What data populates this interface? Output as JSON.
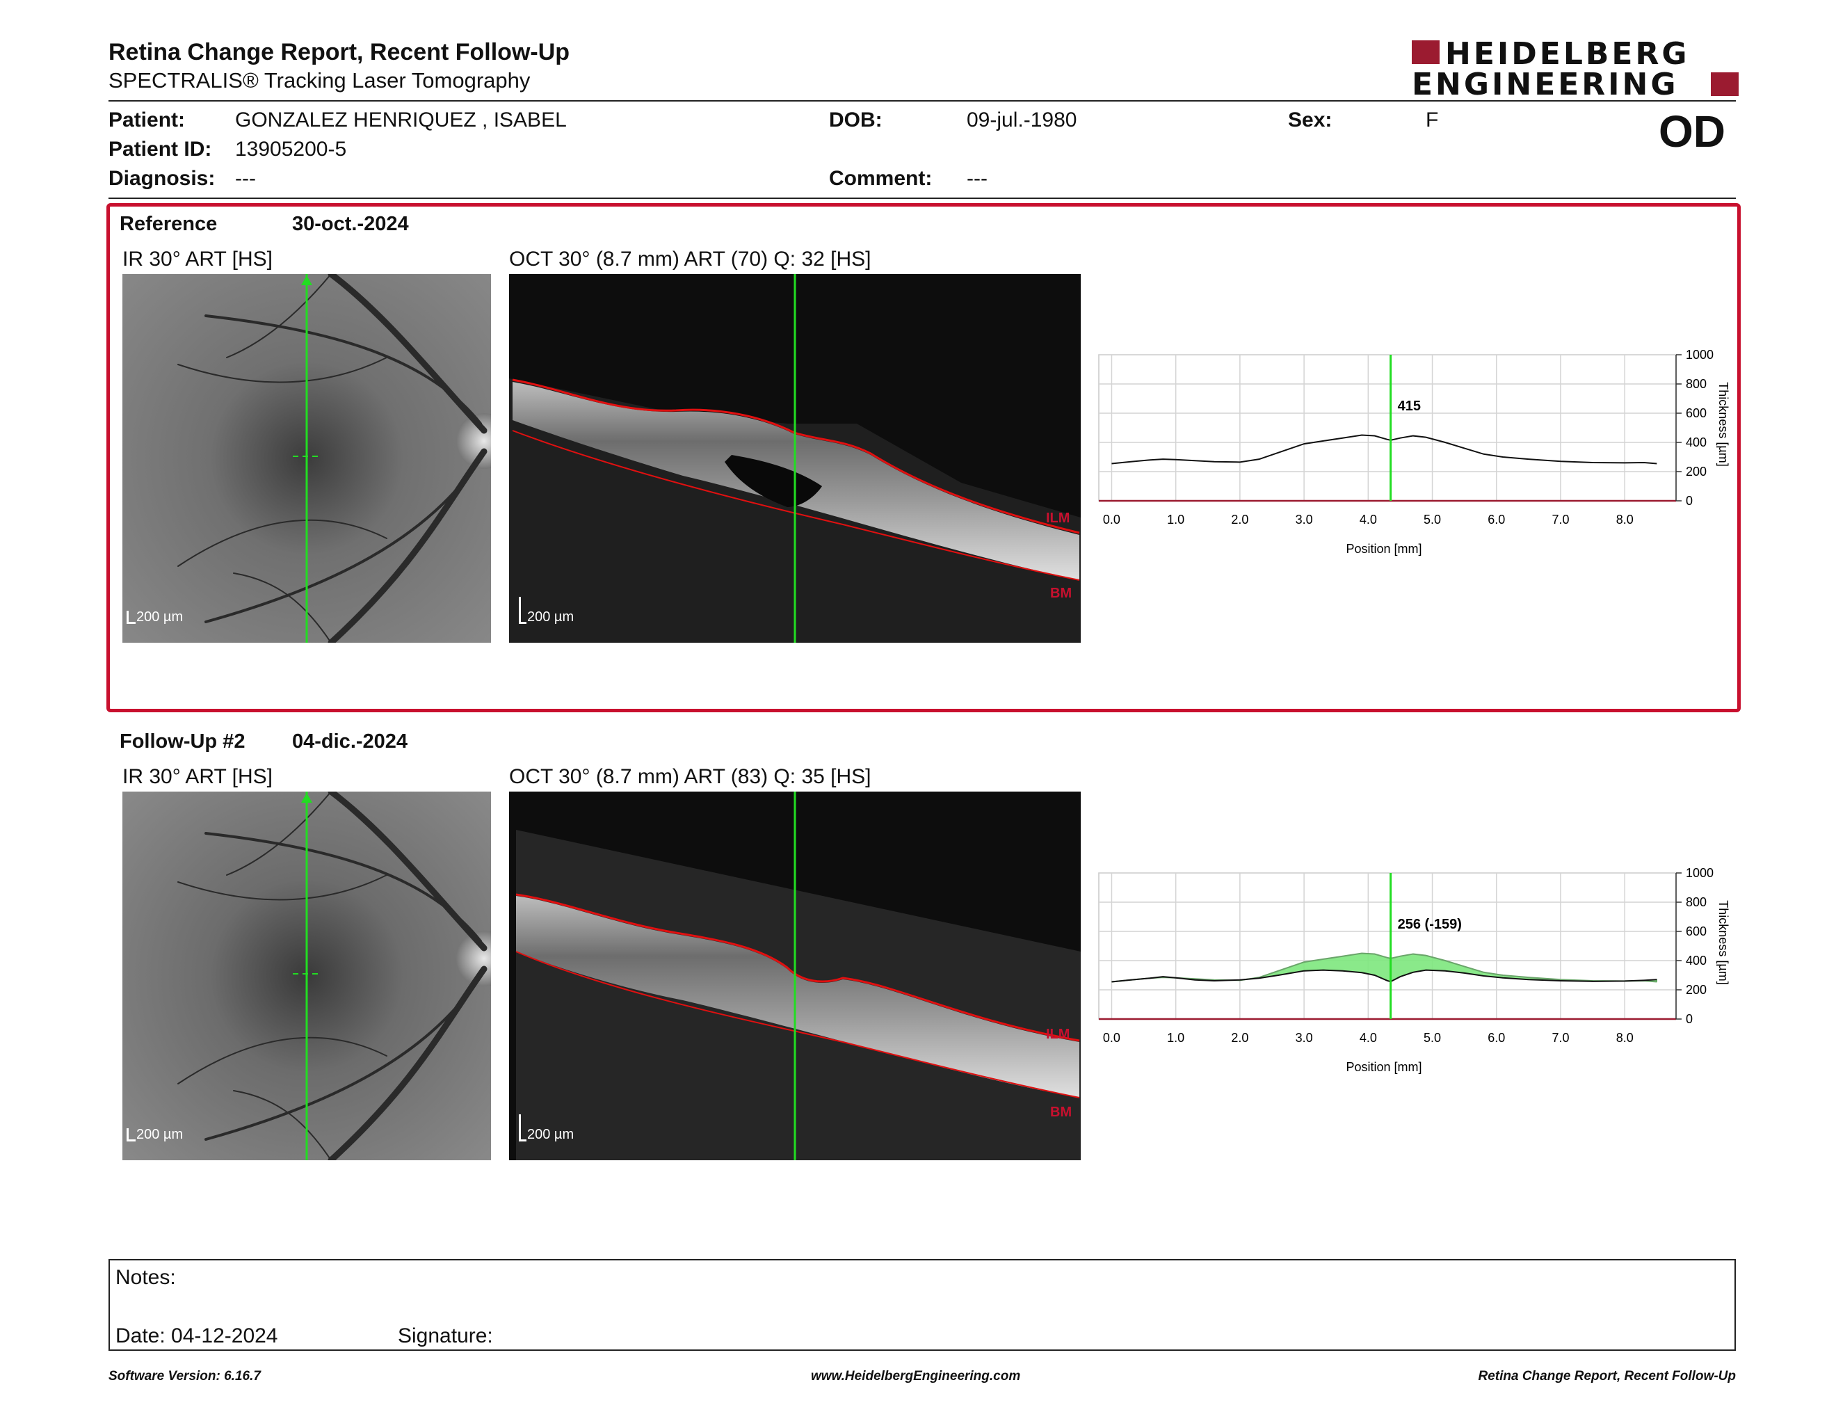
{
  "header": {
    "title": "Retina Change Report, Recent Follow-Up",
    "subtitle": "SPECTRALIS® Tracking Laser Tomography",
    "logo_line1": "HEIDELBERG",
    "logo_line2": "ENGINEERING",
    "eye": "OD"
  },
  "patient": {
    "name_label": "Patient:",
    "name": "GONZALEZ HENRIQUEZ , ISABEL",
    "id_label": "Patient ID:",
    "id": "13905200-5",
    "diagnosis_label": "Diagnosis:",
    "diagnosis": "---",
    "dob_label": "DOB:",
    "dob": "09-jul.-1980",
    "comment_label": "Comment:",
    "comment": "---",
    "sex_label": "Sex:",
    "sex": "F"
  },
  "reference": {
    "label": "Reference",
    "date": "30-oct.-2024",
    "ir_caption": "IR 30° ART [HS]",
    "oct_caption": "OCT 30° (8.7 mm) ART (70) Q: 32 [HS]",
    "scale": "200 µm",
    "layer_top": "ILM",
    "layer_bottom": "BM",
    "thickness_label": "415"
  },
  "followup": {
    "label": "Follow-Up #2",
    "date": "04-dic.-2024",
    "ir_caption": "IR 30° ART [HS]",
    "oct_caption": "OCT 30° (8.7 mm) ART (83) Q: 35 [HS]",
    "scale": "200 µm",
    "layer_top": "ILM",
    "layer_bottom": "BM",
    "thickness_label": "256 (-159)"
  },
  "chart_axes": {
    "xlabel": "Position [mm]",
    "ylabel": "Thickness [µm]",
    "xticks": [
      "0.0",
      "1.0",
      "2.0",
      "3.0",
      "4.0",
      "5.0",
      "6.0",
      "7.0",
      "8.0"
    ],
    "yticks": [
      "0",
      "200",
      "400",
      "600",
      "800",
      "1000"
    ]
  },
  "chart_data": [
    {
      "type": "line",
      "xlabel": "Position [mm]",
      "ylabel": "Thickness [µm]",
      "xlim": [
        -0.2,
        8.8
      ],
      "ylim": [
        0,
        1000
      ],
      "cursor_x": 4.35,
      "cursor_label": "415",
      "series": [
        {
          "x": [
            0.0,
            0.3,
            0.6,
            0.8,
            1.0,
            1.3,
            1.6,
            2.0,
            2.3,
            2.6,
            3.0,
            3.3,
            3.6,
            3.9,
            4.1,
            4.3,
            4.35,
            4.5,
            4.7,
            4.9,
            5.2,
            5.5,
            5.8,
            6.1,
            6.5,
            7.0,
            7.5,
            8.0,
            8.3,
            8.5
          ],
          "values": [
            255,
            268,
            280,
            285,
            282,
            275,
            268,
            265,
            285,
            330,
            390,
            410,
            430,
            450,
            445,
            420,
            415,
            430,
            445,
            435,
            400,
            360,
            320,
            300,
            285,
            270,
            262,
            260,
            262,
            255
          ]
        }
      ]
    },
    {
      "type": "area",
      "xlabel": "Position [mm]",
      "ylabel": "Thickness [µm]",
      "xlim": [
        -0.2,
        8.8
      ],
      "ylim": [
        0,
        1000
      ],
      "cursor_x": 4.35,
      "cursor_label": "256 (-159)",
      "series": [
        {
          "x": [
            0.0,
            0.3,
            0.6,
            0.8,
            1.0,
            1.3,
            1.6,
            2.0,
            2.3,
            2.6,
            3.0,
            3.3,
            3.6,
            3.9,
            4.1,
            4.3,
            4.35,
            4.5,
            4.7,
            4.9,
            5.2,
            5.5,
            5.8,
            6.1,
            6.5,
            7.0,
            7.5,
            8.0,
            8.3,
            8.5
          ],
          "values": [
            255,
            268,
            280,
            285,
            282,
            275,
            268,
            265,
            285,
            330,
            390,
            410,
            430,
            450,
            445,
            420,
            415,
            430,
            445,
            435,
            400,
            360,
            320,
            300,
            285,
            270,
            262,
            260,
            262,
            255
          ]
        },
        {
          "x": [
            0.0,
            0.3,
            0.6,
            0.8,
            1.0,
            1.3,
            1.6,
            2.0,
            2.3,
            2.6,
            3.0,
            3.3,
            3.6,
            3.9,
            4.1,
            4.3,
            4.35,
            4.5,
            4.7,
            4.9,
            5.2,
            5.5,
            5.8,
            6.1,
            6.5,
            7.0,
            7.5,
            8.0,
            8.3,
            8.5
          ],
          "values": [
            255,
            268,
            280,
            290,
            282,
            268,
            262,
            268,
            280,
            300,
            330,
            335,
            330,
            318,
            300,
            262,
            256,
            290,
            320,
            335,
            330,
            315,
            295,
            282,
            270,
            262,
            258,
            260,
            265,
            270
          ]
        }
      ]
    }
  ],
  "notes": {
    "notes_label": "Notes:",
    "date_label": "Date: 04-12-2024",
    "signature_label": "Signature:"
  },
  "footer": {
    "version": "Software Version: 6.16.7",
    "website": "www.HeidelbergEngineering.com",
    "report": "Retina Change Report, Recent Follow-Up"
  },
  "colors": {
    "accent": "#c8102e",
    "brand": "#9b1b30",
    "cursor": "#22dd22",
    "layer": "#e01010",
    "fill": "#7de77d"
  }
}
